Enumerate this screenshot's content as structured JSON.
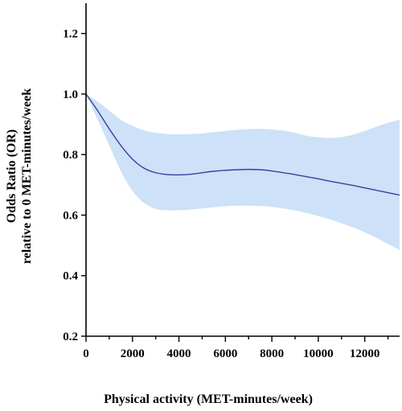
{
  "chart_data": {
    "type": "line",
    "title": "",
    "xlabel": "Physical activity (MET-minutes/week)",
    "ylabel_lines": [
      "Odds  Ratio (OR)",
      "relative to 0 MET-minutes/week"
    ],
    "xlim": [
      0,
      13500
    ],
    "ylim": [
      0.2,
      1.3
    ],
    "x_ticks": [
      0,
      2000,
      4000,
      6000,
      8000,
      10000,
      12000
    ],
    "x_tick_labels": [
      "0",
      "2000",
      "4000",
      "6000",
      "8000",
      "10000",
      "12000"
    ],
    "y_ticks": [
      0.2,
      0.4,
      0.6,
      0.8,
      1.0,
      1.2
    ],
    "y_tick_labels": [
      "0.2",
      "0.4",
      "0.6",
      "0.8",
      "1.0",
      "1.2"
    ],
    "grid": false,
    "series": [
      {
        "x": [
          0,
          500,
          1000,
          1500,
          2000,
          2500,
          3000,
          3500,
          4000,
          4500,
          5000,
          5500,
          6000,
          6500,
          7000,
          7500,
          8000,
          8500,
          9000,
          9500,
          10000,
          10500,
          11000,
          11500,
          12000,
          12500,
          13000,
          13500
        ],
        "y": [
          1.0,
          0.945,
          0.885,
          0.83,
          0.785,
          0.755,
          0.74,
          0.734,
          0.733,
          0.735,
          0.74,
          0.745,
          0.748,
          0.75,
          0.751,
          0.75,
          0.746,
          0.74,
          0.734,
          0.727,
          0.72,
          0.712,
          0.705,
          0.698,
          0.69,
          0.682,
          0.674,
          0.666
        ],
        "lower": [
          1.0,
          0.915,
          0.83,
          0.745,
          0.68,
          0.64,
          0.62,
          0.616,
          0.616,
          0.618,
          0.622,
          0.626,
          0.629,
          0.631,
          0.631,
          0.63,
          0.627,
          0.622,
          0.615,
          0.607,
          0.597,
          0.586,
          0.573,
          0.559,
          0.543,
          0.525,
          0.505,
          0.485
        ],
        "upper": [
          1.0,
          0.975,
          0.945,
          0.915,
          0.895,
          0.88,
          0.872,
          0.868,
          0.867,
          0.868,
          0.87,
          0.874,
          0.878,
          0.882,
          0.884,
          0.885,
          0.883,
          0.879,
          0.872,
          0.862,
          0.857,
          0.855,
          0.858,
          0.866,
          0.878,
          0.892,
          0.905,
          0.915
        ]
      }
    ]
  },
  "colors": {
    "line": "#3d3fa0",
    "band": "#cde1f8",
    "axis": "#000000"
  }
}
